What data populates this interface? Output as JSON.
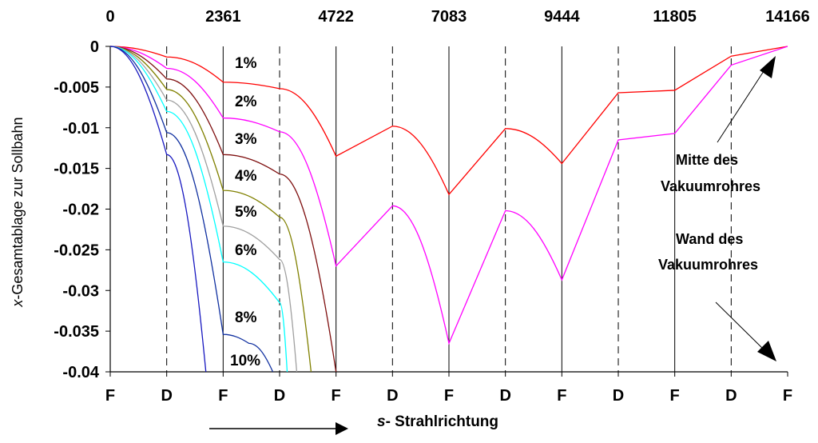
{
  "chart_data": {
    "type": "line",
    "xlabel_var": "s",
    "xlabel_text": "- Strahlrichtung",
    "ylabel_var": "x",
    "ylabel_text": "-Gesamtablage zur Sollbahn",
    "top_ticks": [
      "0",
      "2361",
      "4722",
      "7083",
      "9444",
      "11805",
      "14166"
    ],
    "bottom_ticks": [
      "F",
      "D",
      "F",
      "D",
      "F",
      "D",
      "F",
      "D",
      "F",
      "D",
      "F",
      "D",
      "F"
    ],
    "bottom_tick_positions": [
      0,
      1180.5,
      2361,
      3541.5,
      4722,
      5902.5,
      7083,
      8263.5,
      9444,
      10624.5,
      11805,
      12985.5,
      14166
    ],
    "y_ticks": [
      "0",
      "-0.005",
      "-0.01",
      "-0.015",
      "-0.02",
      "-0.025",
      "-0.03",
      "-0.035",
      "-0.04"
    ],
    "xlim": [
      0,
      14166
    ],
    "ylim": [
      -0.04,
      0
    ],
    "grid": {
      "solid_vertical_at": [
        2361,
        4722,
        7083,
        9444,
        11805
      ],
      "dashed_vertical_at": [
        1180.5,
        3541.5,
        5902.5,
        8263.5,
        10624.5,
        12985.5
      ]
    },
    "series": [
      {
        "name": "1%",
        "color": "#ff0000",
        "x": [
          0,
          1180.5,
          2361,
          3541.5,
          4722,
          5902.5,
          7083,
          8263.5,
          9444,
          10624.5,
          11805,
          12985.5,
          14166
        ],
        "y": [
          0,
          -0.0013,
          -0.0044,
          -0.0052,
          -0.0135,
          -0.0098,
          -0.0182,
          -0.0101,
          -0.0144,
          -0.0057,
          -0.0054,
          -0.0012,
          0
        ]
      },
      {
        "name": "2%",
        "color": "#ff00ff",
        "x": [
          0,
          1180.5,
          2361,
          3541.5,
          4722,
          5902.5,
          7083,
          8263.5,
          9444,
          10624.5,
          11805,
          12985.5,
          14166
        ],
        "y": [
          0,
          -0.0027,
          -0.0088,
          -0.0105,
          -0.027,
          -0.0196,
          -0.0365,
          -0.0202,
          -0.0287,
          -0.0115,
          -0.0107,
          -0.0023,
          0
        ]
      },
      {
        "name": "3%",
        "color": "#7f1010",
        "x": [
          0,
          1180.5,
          2361,
          3541.5,
          4722
        ],
        "y": [
          0,
          -0.004,
          -0.0133,
          -0.0157,
          -0.04
        ]
      },
      {
        "name": "4%",
        "color": "#808000",
        "x": [
          0,
          1180.5,
          2361,
          3541.5,
          4200
        ],
        "y": [
          0,
          -0.0053,
          -0.0177,
          -0.021,
          -0.04
        ]
      },
      {
        "name": "5%",
        "color": "#a0a0a0",
        "x": [
          0,
          1180.5,
          2361,
          3541.5,
          3900
        ],
        "y": [
          0,
          -0.0066,
          -0.0221,
          -0.0262,
          -0.04
        ]
      },
      {
        "name": "6%",
        "color": "#00ffff",
        "x": [
          0,
          1180.5,
          2361,
          3541.5,
          3700
        ],
        "y": [
          0,
          -0.008,
          -0.0265,
          -0.0315,
          -0.04
        ]
      },
      {
        "name": "8%",
        "color": "#1030a0",
        "x": [
          0,
          1180.5,
          2361,
          2900,
          3400
        ],
        "y": [
          0,
          -0.0106,
          -0.0354,
          -0.0365,
          -0.04
        ]
      },
      {
        "name": "10%",
        "color": "#1818c0",
        "x": [
          0,
          1180.5,
          2000
        ],
        "y": [
          0,
          -0.0133,
          -0.04
        ]
      }
    ],
    "annotations": [
      {
        "lines": [
          "Mitte des",
          "Vakuumrohres"
        ]
      },
      {
        "lines": [
          "Wand des",
          "Vakuumrohres"
        ]
      }
    ]
  }
}
